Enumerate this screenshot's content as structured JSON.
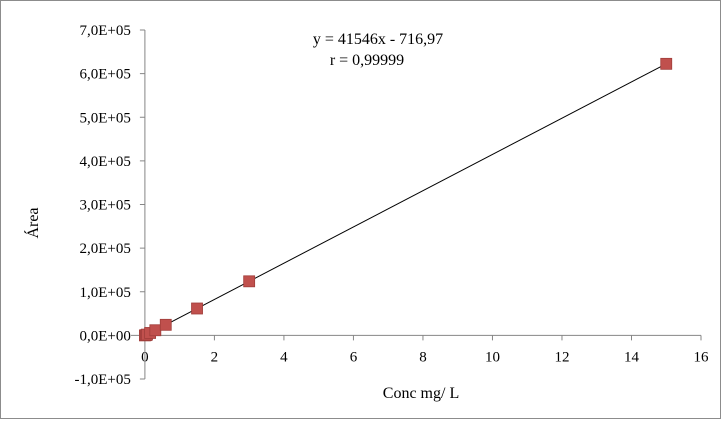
{
  "chart_data": {
    "type": "scatter",
    "title": "",
    "xlabel": "Conc mg/ L",
    "ylabel": "Área",
    "xlim": [
      -0.4,
      16
    ],
    "ylim": [
      -100000,
      700000
    ],
    "x_ticks": [
      {
        "value": 0,
        "label": "0"
      },
      {
        "value": 2,
        "label": "2"
      },
      {
        "value": 4,
        "label": "4"
      },
      {
        "value": 6,
        "label": "6"
      },
      {
        "value": 8,
        "label": "8"
      },
      {
        "value": 10,
        "label": "10"
      },
      {
        "value": 12,
        "label": "12"
      },
      {
        "value": 14,
        "label": "14"
      },
      {
        "value": 16,
        "label": "16"
      }
    ],
    "y_ticks": [
      {
        "value": -100000,
        "label": "-1,0E+05"
      },
      {
        "value": 0,
        "label": "0,0E+00"
      },
      {
        "value": 100000,
        "label": "1,0E+05"
      },
      {
        "value": 200000,
        "label": "2,0E+05"
      },
      {
        "value": 300000,
        "label": "3,0E+05"
      },
      {
        "value": 400000,
        "label": "4,0E+05"
      },
      {
        "value": 500000,
        "label": "5,0E+05"
      },
      {
        "value": 600000,
        "label": "6,0E+05"
      },
      {
        "value": 700000,
        "label": "7,0E+05"
      }
    ],
    "series": [
      {
        "marker": "square",
        "color": "#c0504d",
        "points": [
          {
            "x": 0.0,
            "y": 0
          },
          {
            "x": 0.03,
            "y": 530
          },
          {
            "x": 0.06,
            "y": 1780
          },
          {
            "x": 0.15,
            "y": 5520
          },
          {
            "x": 0.3,
            "y": 11750
          },
          {
            "x": 0.6,
            "y": 24210
          },
          {
            "x": 1.5,
            "y": 61600
          },
          {
            "x": 3.0,
            "y": 123920
          },
          {
            "x": 15.0,
            "y": 622470
          }
        ]
      }
    ],
    "trendline": {
      "slope": 41546,
      "intercept": -716.97,
      "color": "#000000"
    },
    "annotations": {
      "equation": "y = 41546x - 716,97",
      "r_value": "r = 0,99999"
    },
    "grid": false,
    "legend": "none"
  }
}
